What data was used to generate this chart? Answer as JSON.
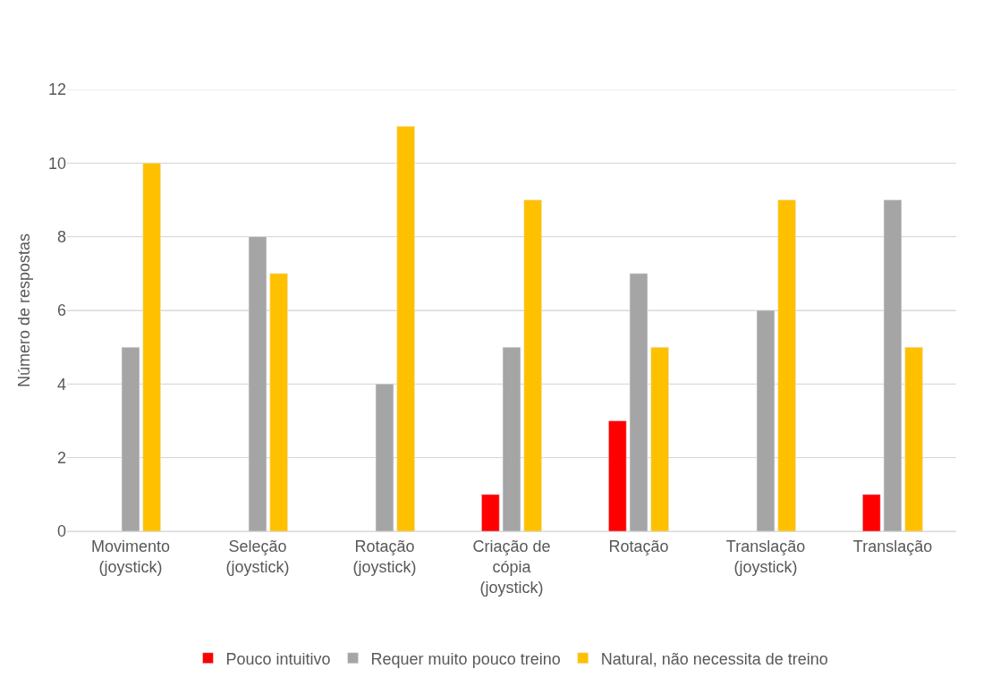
{
  "chart_data": {
    "type": "bar",
    "ylabel": "Número de respostas",
    "categories": [
      "Movimento (joystick)",
      "Seleção (joystick)",
      "Rotação (joystick)",
      "Criação de cópia (joystick)",
      "Rotação",
      "Translação (joystick)",
      "Translação"
    ],
    "series": [
      {
        "name": "Pouco intuitivo",
        "color": "#ff0000",
        "values": [
          null,
          null,
          null,
          1,
          3,
          null,
          1
        ]
      },
      {
        "name": "Requer muito pouco treino",
        "color": "#a5a5a5",
        "values": [
          5,
          8,
          4,
          5,
          7,
          6,
          9
        ]
      },
      {
        "name": "Natural, não necessita de treino",
        "color": "#ffc000",
        "values": [
          10,
          7,
          11,
          9,
          5,
          9,
          5
        ]
      }
    ],
    "ylim": [
      0,
      12
    ],
    "yticks": [
      0,
      2,
      4,
      6,
      8,
      10,
      12
    ],
    "grid": "y",
    "legend": "bottom"
  }
}
